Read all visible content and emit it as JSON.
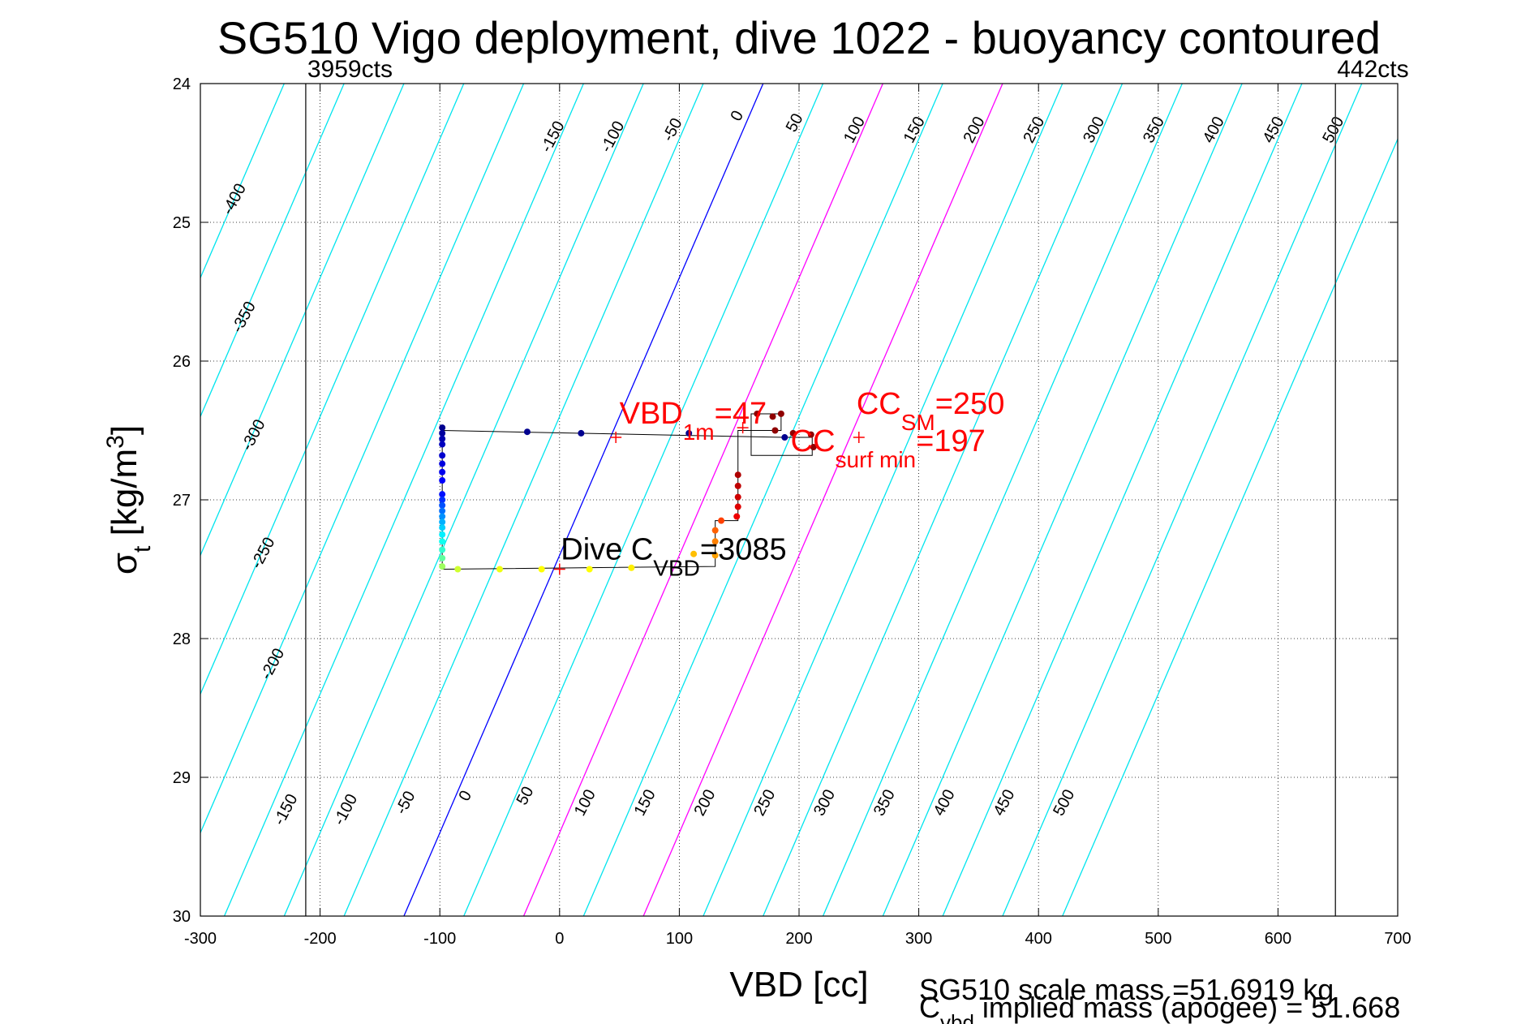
{
  "chart_data": {
    "type": "scatter",
    "title": "SG510 Vigo deployment, dive 1022 - buoyancy contoured",
    "xlabel": "VBD [cc]",
    "ylabel": "σ",
    "ylabel_sub": "t",
    "ylabel_rest": " [kg/m",
    "ylabel_sup": "3",
    "ylabel_end": "]",
    "xlim": [
      -300,
      700
    ],
    "ylim": [
      24,
      30
    ],
    "y_reversed": true,
    "grid": "dotted",
    "x_ticks": [
      -300,
      -200,
      -100,
      0,
      100,
      200,
      300,
      400,
      500,
      600,
      700
    ],
    "x_tick_labels": [
      "-300",
      "-200",
      "-100",
      "0",
      "100",
      "200",
      "300",
      "400",
      "500",
      "600",
      "700"
    ],
    "y_ticks": [
      24,
      25,
      26,
      27,
      28,
      29,
      30
    ],
    "y_tick_labels": [
      "24",
      "25",
      "26",
      "27",
      "28",
      "29",
      "30"
    ],
    "contours": {
      "slope_sigma_per_cc": 0.02,
      "levels": [
        -400,
        -350,
        -300,
        -250,
        -200,
        -150,
        -100,
        -50,
        0,
        50,
        100,
        150,
        200,
        250,
        300,
        350,
        400,
        450,
        500,
        550
      ],
      "zero_line_vbd_at_sigma30": -130,
      "highlight_levels": [
        0,
        100,
        200
      ],
      "level_colors": {
        "default": "#00e5ee",
        "0": "#0000ff",
        "100": "#ff00ff",
        "200": "#ff00ff"
      },
      "top_labels": [
        {
          "text": "-400",
          "vbd": -268,
          "sigma": 24.85
        },
        {
          "text": "-350",
          "vbd": -260,
          "sigma": 25.7
        },
        {
          "text": "-300",
          "vbd": -252,
          "sigma": 26.55
        },
        {
          "text": "-250",
          "vbd": -244,
          "sigma": 27.4
        },
        {
          "text": "-200",
          "vbd": -236,
          "sigma": 28.2
        },
        {
          "text": "-150",
          "vbd": -2,
          "sigma": 24.4
        },
        {
          "text": "-100",
          "vbd": 48,
          "sigma": 24.4
        },
        {
          "text": "-50",
          "vbd": 98,
          "sigma": 24.35
        },
        {
          "text": "0",
          "vbd": 152,
          "sigma": 24.25
        },
        {
          "text": "50",
          "vbd": 200,
          "sigma": 24.3
        },
        {
          "text": "100",
          "vbd": 250,
          "sigma": 24.35
        },
        {
          "text": "150",
          "vbd": 300,
          "sigma": 24.35
        },
        {
          "text": "200",
          "vbd": 350,
          "sigma": 24.35
        },
        {
          "text": "250",
          "vbd": 400,
          "sigma": 24.35
        },
        {
          "text": "300",
          "vbd": 450,
          "sigma": 24.35
        },
        {
          "text": "350",
          "vbd": 500,
          "sigma": 24.35
        },
        {
          "text": "400",
          "vbd": 550,
          "sigma": 24.35
        },
        {
          "text": "450",
          "vbd": 600,
          "sigma": 24.35
        },
        {
          "text": "500",
          "vbd": 650,
          "sigma": 24.35
        }
      ],
      "bottom_labels": [
        {
          "text": "-150",
          "vbd": -225,
          "sigma": 29.25
        },
        {
          "text": "-100",
          "vbd": -175,
          "sigma": 29.25
        },
        {
          "text": "-50",
          "vbd": -125,
          "sigma": 29.2
        },
        {
          "text": "0",
          "vbd": -75,
          "sigma": 29.15
        },
        {
          "text": "50",
          "vbd": -25,
          "sigma": 29.15
        },
        {
          "text": "100",
          "vbd": 25,
          "sigma": 29.2
        },
        {
          "text": "150",
          "vbd": 75,
          "sigma": 29.2
        },
        {
          "text": "200",
          "vbd": 125,
          "sigma": 29.2
        },
        {
          "text": "250",
          "vbd": 175,
          "sigma": 29.2
        },
        {
          "text": "300",
          "vbd": 225,
          "sigma": 29.2
        },
        {
          "text": "350",
          "vbd": 275,
          "sigma": 29.2
        },
        {
          "text": "400",
          "vbd": 325,
          "sigma": 29.2
        },
        {
          "text": "450",
          "vbd": 375,
          "sigma": 29.2
        },
        {
          "text": "500",
          "vbd": 425,
          "sigma": 29.2
        }
      ]
    },
    "vertical_lines": [
      {
        "vbd": -212,
        "label": "3959cts"
      },
      {
        "vbd": 648,
        "label": "442cts"
      }
    ],
    "trace_black": [
      [
        -98,
        26.5
      ],
      [
        188,
        26.55
      ],
      [
        211,
        26.55
      ],
      [
        211,
        26.68
      ],
      [
        160,
        26.68
      ],
      [
        160,
        26.38
      ],
      [
        185,
        26.38
      ],
      [
        185,
        26.5
      ],
      [
        149,
        26.5
      ],
      [
        149,
        27.15
      ],
      [
        130,
        27.15
      ],
      [
        130,
        27.48
      ],
      [
        -98,
        27.5
      ],
      [
        -98,
        26.5
      ]
    ],
    "dive_points": [
      {
        "vbd": -98,
        "sigma": 26.48,
        "color": "#00008f"
      },
      {
        "vbd": -98,
        "sigma": 26.52,
        "color": "#00009f"
      },
      {
        "vbd": -98,
        "sigma": 26.56,
        "color": "#0000af"
      },
      {
        "vbd": -98,
        "sigma": 26.6,
        "color": "#0000bf"
      },
      {
        "vbd": -98,
        "sigma": 26.68,
        "color": "#0000cf"
      },
      {
        "vbd": -98,
        "sigma": 26.74,
        "color": "#0000df"
      },
      {
        "vbd": -98,
        "sigma": 26.8,
        "color": "#0000ef"
      },
      {
        "vbd": -98,
        "sigma": 26.86,
        "color": "#0000ff"
      },
      {
        "vbd": -98,
        "sigma": 26.96,
        "color": "#0010ff"
      },
      {
        "vbd": -98,
        "sigma": 27.0,
        "color": "#0030ff"
      },
      {
        "vbd": -98,
        "sigma": 27.04,
        "color": "#0050ff"
      },
      {
        "vbd": -98,
        "sigma": 27.08,
        "color": "#0070ff"
      },
      {
        "vbd": -98,
        "sigma": 27.12,
        "color": "#0090ff"
      },
      {
        "vbd": -98,
        "sigma": 27.16,
        "color": "#00b0ff"
      },
      {
        "vbd": -98,
        "sigma": 27.2,
        "color": "#00d0ff"
      },
      {
        "vbd": -98,
        "sigma": 27.25,
        "color": "#00f0ff"
      },
      {
        "vbd": -98,
        "sigma": 27.3,
        "color": "#10ffef"
      },
      {
        "vbd": -98,
        "sigma": 27.36,
        "color": "#30ffcf"
      },
      {
        "vbd": -98,
        "sigma": 27.42,
        "color": "#60ff9f"
      },
      {
        "vbd": -98,
        "sigma": 27.48,
        "color": "#9fff60"
      },
      {
        "vbd": -85,
        "sigma": 27.5,
        "color": "#cfff30"
      },
      {
        "vbd": -50,
        "sigma": 27.5,
        "color": "#efff10"
      },
      {
        "vbd": -15,
        "sigma": 27.5,
        "color": "#ffff00"
      },
      {
        "vbd": 25,
        "sigma": 27.5,
        "color": "#ffff00"
      },
      {
        "vbd": 60,
        "sigma": 27.49,
        "color": "#fff000"
      },
      {
        "vbd": 112,
        "sigma": 27.39,
        "color": "#ffbf00"
      },
      {
        "vbd": 130,
        "sigma": 27.4,
        "color": "#ffa000"
      },
      {
        "vbd": 130,
        "sigma": 27.3,
        "color": "#ff8000"
      },
      {
        "vbd": 130,
        "sigma": 27.22,
        "color": "#ff6000"
      },
      {
        "vbd": 135,
        "sigma": 27.15,
        "color": "#ff4000"
      },
      {
        "vbd": 148,
        "sigma": 27.12,
        "color": "#ef0000"
      },
      {
        "vbd": 149,
        "sigma": 27.05,
        "color": "#df0000"
      },
      {
        "vbd": 149,
        "sigma": 26.98,
        "color": "#cf0000"
      },
      {
        "vbd": 149,
        "sigma": 26.9,
        "color": "#bf0000"
      },
      {
        "vbd": 149,
        "sigma": 26.82,
        "color": "#af0000"
      },
      {
        "vbd": 165,
        "sigma": 26.38,
        "color": "#8f0000"
      },
      {
        "vbd": 178,
        "sigma": 26.4,
        "color": "#8f0000"
      },
      {
        "vbd": 185,
        "sigma": 26.38,
        "color": "#8f0000"
      },
      {
        "vbd": 180,
        "sigma": 26.5,
        "color": "#8f0000"
      },
      {
        "vbd": 195,
        "sigma": 26.52,
        "color": "#8f0000"
      },
      {
        "vbd": 210,
        "sigma": 26.53,
        "color": "#8f0000"
      },
      {
        "vbd": 212,
        "sigma": 26.62,
        "color": "#8f0000"
      },
      {
        "vbd": 188,
        "sigma": 26.55,
        "color": "#00008f"
      },
      {
        "vbd": 108,
        "sigma": 26.52,
        "color": "#00008f"
      },
      {
        "vbd": 18,
        "sigma": 26.52,
        "color": "#00008f"
      },
      {
        "vbd": -27,
        "sigma": 26.51,
        "color": "#00008f"
      }
    ],
    "markers": [
      {
        "vbd": 47,
        "sigma": 26.55,
        "color": "#ff0000"
      },
      {
        "vbd": 250,
        "sigma": 26.55,
        "color": "#ff0000"
      },
      {
        "vbd": 0,
        "sigma": 27.5,
        "color": "#ff0000"
      },
      {
        "vbd": 153,
        "sigma": 26.48,
        "color": "#ff0000"
      }
    ],
    "annotations": [
      {
        "main": "VBD",
        "sub": "1m",
        "rest": "=47",
        "color": "#ff0000",
        "vbd": 50,
        "sigma": 26.45
      },
      {
        "main": "CC",
        "sub": "SM",
        "rest": "=250",
        "color": "#ff0000",
        "vbd": 248,
        "sigma": 26.38
      },
      {
        "main": "CC",
        "sub": "surf min",
        "rest": "=197",
        "color": "#ff0000",
        "vbd": 193,
        "sigma": 26.65
      },
      {
        "main": "Dive C",
        "sub": "VBD",
        "rest": "=3085",
        "color": "#000000",
        "vbd": 1,
        "sigma": 27.43
      }
    ],
    "footer": {
      "line1": "SG510 scale mass =51.6919 kg",
      "line2_main": "C",
      "line2_sub": "vbd",
      "line2_rest": " implied mass (apogee) = 51.668"
    }
  }
}
